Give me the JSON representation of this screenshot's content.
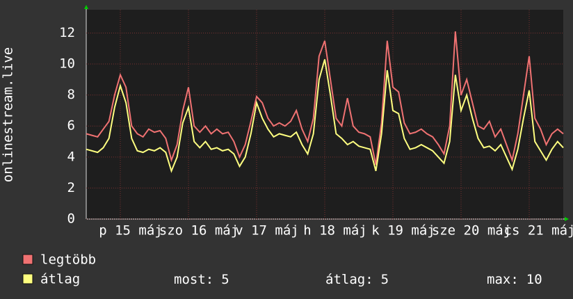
{
  "chart_data": {
    "type": "line",
    "ylabel": "onlinestream.live",
    "x": [
      0,
      2,
      4,
      6,
      8,
      10,
      12,
      14,
      16,
      18,
      20,
      22,
      24,
      26,
      28,
      30,
      32,
      34,
      36,
      38,
      40,
      42,
      44,
      46,
      48,
      50,
      52,
      54,
      56,
      58,
      60,
      62,
      64,
      66,
      68,
      70,
      72,
      74,
      76,
      78,
      80,
      82,
      84,
      86,
      88,
      90,
      92,
      94,
      96,
      98,
      100,
      102,
      104,
      106,
      108,
      110,
      112,
      114,
      116,
      118,
      120,
      122,
      124,
      126,
      128,
      130,
      132,
      134,
      136,
      138,
      140,
      142,
      144,
      146,
      148,
      150,
      152,
      154,
      156,
      158,
      160,
      162,
      164,
      166,
      168
    ],
    "series": [
      {
        "name": "legtöbb",
        "color": "#f07272",
        "values": [
          5.5,
          5.4,
          5.3,
          5.8,
          6.3,
          8.0,
          9.3,
          8.5,
          6.0,
          5.5,
          5.3,
          5.8,
          5.6,
          5.7,
          5.2,
          3.8,
          4.8,
          7.0,
          8.5,
          6.0,
          5.6,
          6.0,
          5.5,
          5.8,
          5.5,
          5.6,
          5.0,
          4.0,
          4.8,
          6.3,
          7.9,
          7.5,
          6.5,
          6.0,
          6.2,
          6.0,
          6.3,
          7.0,
          5.8,
          5.0,
          6.5,
          10.5,
          11.5,
          9.0,
          6.5,
          6.0,
          7.8,
          6.0,
          5.6,
          5.5,
          5.3,
          3.5,
          6.2,
          11.5,
          8.5,
          8.2,
          6.2,
          5.5,
          5.6,
          5.8,
          5.5,
          5.3,
          4.8,
          4.2,
          6.0,
          12.1,
          8.0,
          9.0,
          7.5,
          6.0,
          5.8,
          6.3,
          5.3,
          5.8,
          4.8,
          3.8,
          5.5,
          8.0,
          10.5,
          6.5,
          5.8,
          4.8,
          5.5,
          5.8,
          5.5
        ]
      },
      {
        "name": "átlag",
        "color": "#ffff80",
        "values": [
          4.5,
          4.4,
          4.3,
          4.6,
          5.2,
          7.2,
          8.6,
          7.5,
          5.2,
          4.4,
          4.3,
          4.5,
          4.4,
          4.6,
          4.3,
          3.1,
          4.0,
          6.2,
          7.2,
          5.0,
          4.6,
          5.0,
          4.5,
          4.6,
          4.4,
          4.5,
          4.2,
          3.4,
          4.0,
          5.5,
          7.5,
          6.5,
          5.8,
          5.3,
          5.5,
          5.4,
          5.3,
          5.6,
          4.8,
          4.2,
          5.5,
          9.0,
          10.3,
          8.0,
          5.5,
          5.2,
          4.8,
          5.0,
          4.7,
          4.6,
          4.5,
          3.1,
          5.5,
          9.6,
          7.0,
          6.8,
          5.2,
          4.5,
          4.6,
          4.8,
          4.6,
          4.4,
          4.0,
          3.6,
          5.0,
          9.3,
          7.0,
          8.0,
          6.5,
          5.2,
          4.6,
          4.7,
          4.4,
          4.8,
          4.0,
          3.2,
          4.5,
          6.5,
          8.3,
          5.0,
          4.4,
          3.8,
          4.5,
          5.0,
          4.6
        ]
      }
    ],
    "xlim": [
      0,
      168
    ],
    "xticks": [
      {
        "value": 12,
        "label": "p 15 máj"
      },
      {
        "value": 36,
        "label": "szo 16 máj"
      },
      {
        "value": 60,
        "label": "v 17 máj"
      },
      {
        "value": 84,
        "label": "h 18 máj"
      },
      {
        "value": 108,
        "label": "k 19 máj"
      },
      {
        "value": 132,
        "label": "sze 20 máj"
      },
      {
        "value": 156,
        "label": "cs 21 máj"
      }
    ],
    "ylim": [
      0,
      13.5
    ],
    "yticks": [
      0,
      2,
      4,
      6,
      8,
      10,
      12
    ],
    "grid": true,
    "stats": [
      {
        "label": "most:",
        "value": 5
      },
      {
        "label": "átlag:",
        "value": 5
      },
      {
        "label": "max:",
        "value": 10
      }
    ]
  }
}
